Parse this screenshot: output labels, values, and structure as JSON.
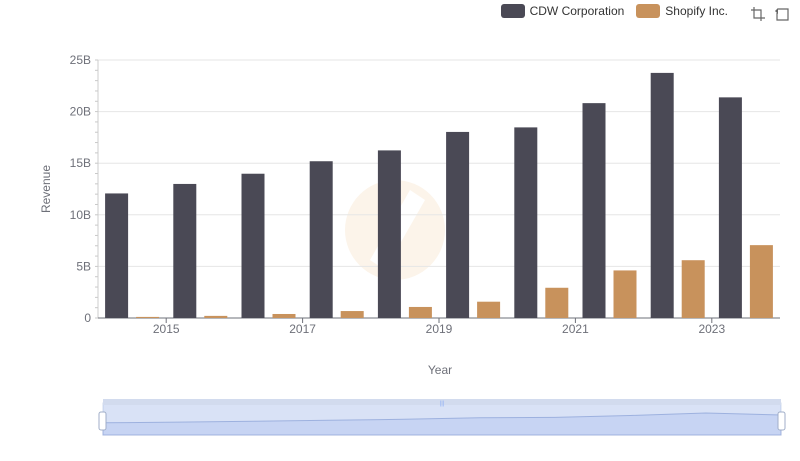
{
  "chart_data": {
    "type": "bar",
    "categories": [
      "2014",
      "2015",
      "2016",
      "2017",
      "2018",
      "2019",
      "2020",
      "2021",
      "2022",
      "2023"
    ],
    "series": [
      {
        "name": "CDW Corporation",
        "color": "#4a4955",
        "values": [
          12.07,
          12.99,
          13.98,
          15.19,
          16.24,
          18.03,
          18.47,
          20.82,
          23.75,
          21.38
        ]
      },
      {
        "name": "Shopify Inc.",
        "color": "#c8925c",
        "values": [
          0.105,
          0.205,
          0.389,
          0.673,
          1.07,
          1.58,
          2.93,
          4.61,
          5.6,
          7.06
        ]
      }
    ],
    "xlabel": "Year",
    "ylabel": "Revenue",
    "ylim": [
      0,
      25
    ],
    "y_ticks": [
      "0",
      "5B",
      "10B",
      "15B",
      "20B",
      "25B"
    ],
    "x_tick_labels": [
      "2015",
      "2017",
      "2019",
      "2021",
      "2023"
    ],
    "legend_position": "top-right",
    "grid": true
  },
  "toolbox": {
    "zoom_icon": "zoom-select-icon",
    "reset_icon": "zoom-reset-icon"
  },
  "data_zoom": {
    "range_start_pct": 0,
    "range_end_pct": 100
  }
}
